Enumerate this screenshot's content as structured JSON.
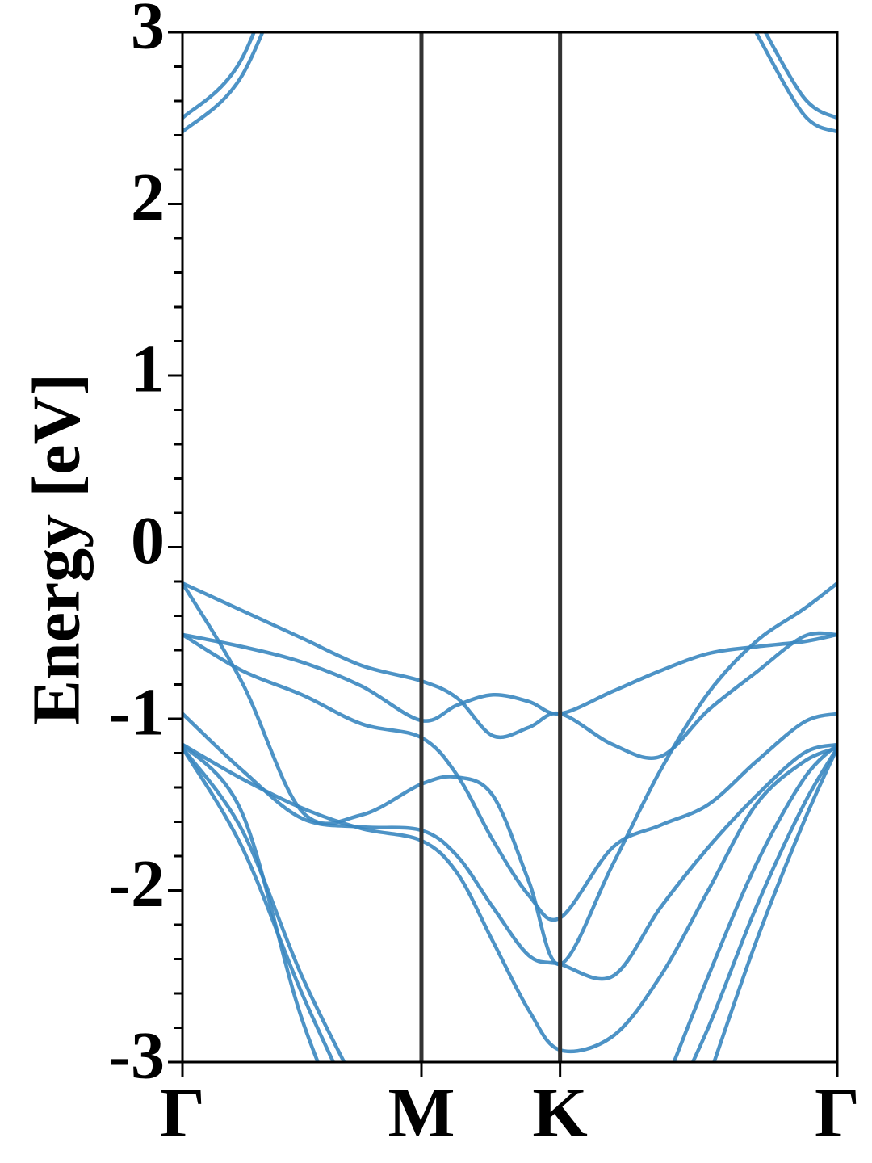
{
  "chart_data": {
    "type": "line",
    "ylabel": "Energy [eV]",
    "x": [
      0,
      0.25,
      0.5,
      0.75,
      1,
      1.15,
      1.3,
      1.45,
      1.58,
      1.8,
      2.0,
      2.2,
      2.4,
      2.6,
      2.74
    ],
    "xlim": [
      0,
      2.74
    ],
    "xticks": [
      {
        "value": 0,
        "label": "Γ"
      },
      {
        "value": 1,
        "label": "M"
      },
      {
        "value": 1.58,
        "label": "K"
      },
      {
        "value": 2.74,
        "label": "Γ"
      }
    ],
    "vlines": [
      1,
      1.58
    ],
    "ylim": [
      -3,
      3
    ],
    "yticks": [
      -3,
      -2,
      -1,
      0,
      1,
      2,
      3
    ],
    "series": [
      {
        "color": "#3a87c0",
        "values": [
          2.5,
          2.85,
          3.8,
          null,
          null,
          null,
          null,
          null,
          null,
          null,
          null,
          null,
          3.1,
          2.62,
          2.5
        ]
      },
      {
        "color": "#3a87c0",
        "values": [
          2.42,
          2.75,
          3.6,
          null,
          null,
          null,
          null,
          null,
          null,
          null,
          null,
          null,
          3.0,
          2.52,
          2.42
        ]
      },
      {
        "color": "#3a87c0",
        "values": [
          -0.21,
          -0.37,
          -0.53,
          -0.69,
          -0.78,
          -0.88,
          -1.1,
          -1.05,
          -0.97,
          -1.15,
          -1.22,
          -0.95,
          -0.73,
          -0.52,
          -0.51
        ]
      },
      {
        "color": "#3a87c0",
        "values": [
          -0.51,
          -0.58,
          -0.67,
          -0.81,
          -1.01,
          -0.92,
          -0.86,
          -0.9,
          -0.97,
          -0.84,
          -0.72,
          -0.62,
          -0.58,
          -0.55,
          -0.51
        ]
      },
      {
        "color": "#3a87c0",
        "values": [
          -0.51,
          -0.72,
          -0.86,
          -1.03,
          -1.11,
          -1.33,
          -1.71,
          -2.03,
          -2.16,
          -1.75,
          -1.62,
          -1.5,
          -1.25,
          -1.02,
          -0.97
        ]
      },
      {
        "color": "#3a87c0",
        "values": [
          -0.21,
          -0.79,
          -1.54,
          -1.56,
          -1.38,
          -1.34,
          -1.45,
          -1.95,
          -2.43,
          -1.85,
          -1.3,
          -0.85,
          -0.55,
          -0.36,
          -0.21
        ]
      },
      {
        "color": "#3a87c0",
        "values": [
          -0.97,
          -1.3,
          -1.58,
          -1.63,
          -1.65,
          -1.8,
          -2.1,
          -2.38,
          -2.43,
          -2.5,
          -2.1,
          -1.75,
          -1.45,
          -1.2,
          -1.15
        ]
      },
      {
        "color": "#3a87c0",
        "values": [
          -1.15,
          -1.35,
          -1.52,
          -1.64,
          -1.71,
          -1.9,
          -2.3,
          -2.7,
          -2.93,
          -2.85,
          -2.5,
          -2.0,
          -1.5,
          -1.25,
          -1.17
        ]
      },
      {
        "color": "#3a87c0",
        "values": [
          -1.15,
          -1.55,
          -2.75,
          -3.6,
          null,
          null,
          null,
          null,
          null,
          null,
          -3.2,
          -2.5,
          -1.85,
          -1.35,
          -1.15
        ]
      },
      {
        "color": "#3a87c0",
        "values": [
          -1.17,
          -1.65,
          -2.5,
          -3.2,
          null,
          null,
          null,
          null,
          null,
          null,
          -3.4,
          -2.8,
          -2.1,
          -1.5,
          -1.17
        ]
      },
      {
        "color": "#3a87c0",
        "values": [
          -1.17,
          -1.75,
          -2.6,
          -3.35,
          null,
          null,
          null,
          null,
          null,
          null,
          null,
          -3.1,
          -2.3,
          -1.6,
          -1.17
        ]
      }
    ]
  }
}
